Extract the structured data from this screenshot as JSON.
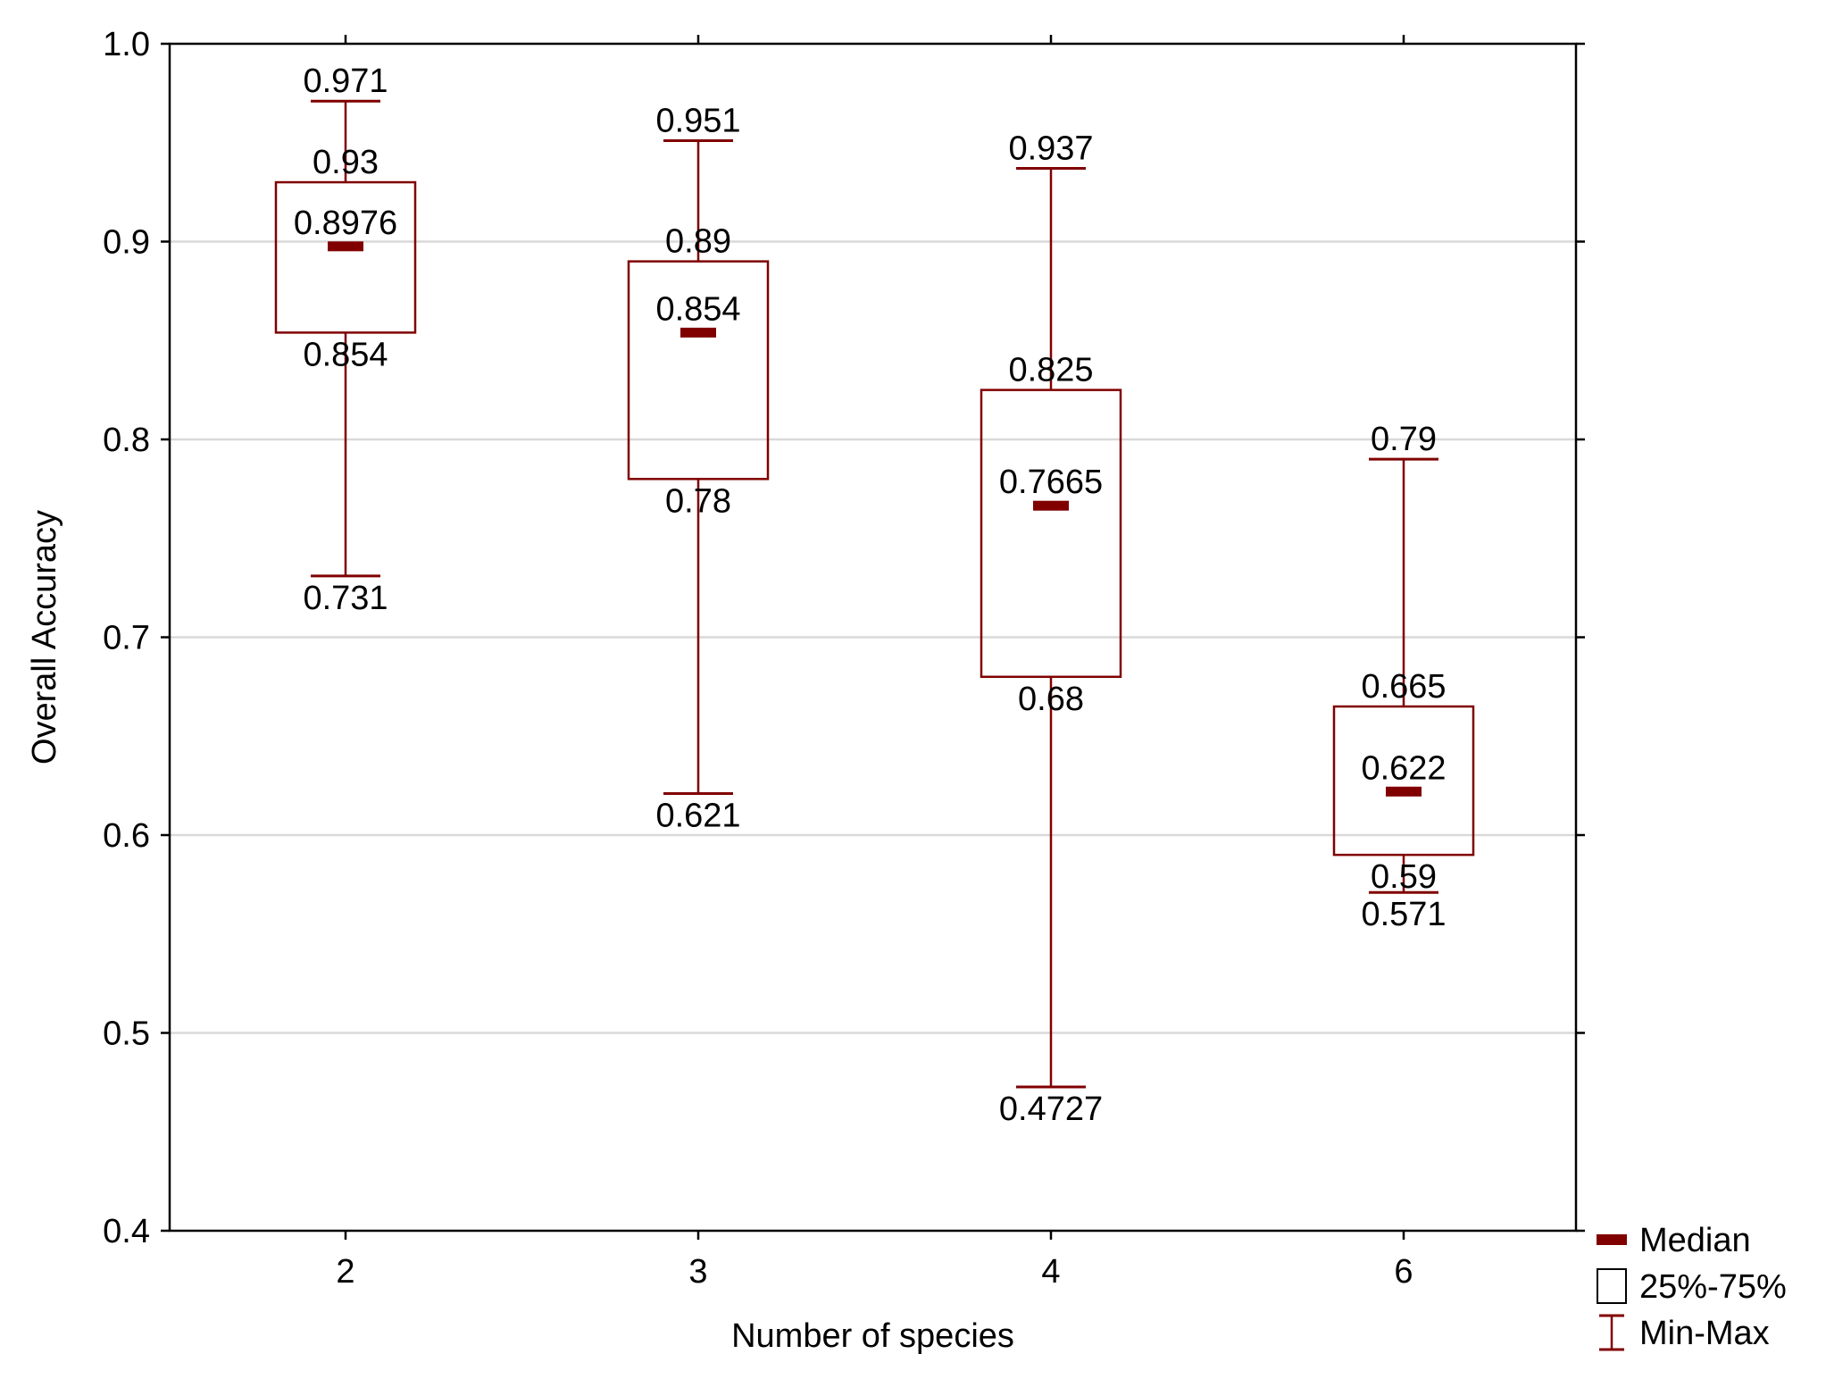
{
  "chart_data": {
    "type": "boxplot",
    "title": "",
    "xlabel": "Number of species",
    "ylabel": "Overall Accuracy",
    "ylim": [
      0.4,
      1.0
    ],
    "yticks": [
      0.4,
      0.5,
      0.6,
      0.7,
      0.8,
      0.9,
      1.0
    ],
    "ytick_labels": [
      "0.4",
      "0.5",
      "0.6",
      "0.7",
      "0.8",
      "0.9",
      "1.0"
    ],
    "grid": "horizontal",
    "categories": [
      "2",
      "3",
      "4",
      "6"
    ],
    "boxes": [
      {
        "category": "2",
        "min": 0.731,
        "q1": 0.854,
        "median": 0.8976,
        "q3": 0.93,
        "max": 0.971,
        "labels": {
          "min": "0.731",
          "q1": "0.854",
          "median": "0.8976",
          "q3": "0.93",
          "max": "0.971"
        }
      },
      {
        "category": "3",
        "min": 0.621,
        "q1": 0.78,
        "median": 0.854,
        "q3": 0.89,
        "max": 0.951,
        "labels": {
          "min": "0.621",
          "q1": "0.78",
          "median": "0.854",
          "q3": "0.89",
          "max": "0.951"
        }
      },
      {
        "category": "4",
        "min": 0.4727,
        "q1": 0.68,
        "median": 0.7665,
        "q3": 0.825,
        "max": 0.937,
        "labels": {
          "min": "0.4727",
          "q1": "0.68",
          "median": "0.7665",
          "q3": "0.825",
          "max": "0.937"
        }
      },
      {
        "category": "6",
        "min": 0.571,
        "q1": 0.59,
        "median": 0.622,
        "q3": 0.665,
        "max": 0.79,
        "labels": {
          "min": "0.571",
          "q1": "0.59",
          "median": "0.622",
          "q3": "0.665",
          "max": "0.79"
        }
      }
    ],
    "legend": {
      "position": "bottom-right",
      "items": [
        {
          "kind": "median",
          "label": "Median"
        },
        {
          "kind": "box",
          "label": "25%-75%"
        },
        {
          "kind": "whisker",
          "label": "Min-Max"
        }
      ]
    }
  },
  "colors": {
    "series": "#800000",
    "grid": "#d9d9d9",
    "axis": "#000000",
    "background": "#ffffff"
  }
}
